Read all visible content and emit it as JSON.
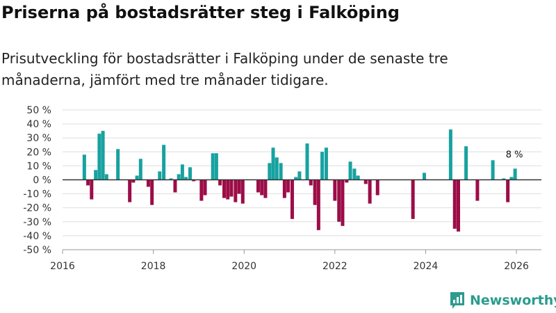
{
  "title": "Priserna på bostadsrätter steg i Falköping",
  "subtitle": "Prisutveckling för bostadsrätter i Falköping under de senaste tre månaderna, jämfört med tre månader tidigare.",
  "brand": {
    "name": "Newsworthy",
    "icon": "newsworthy-logo-icon"
  },
  "colors": {
    "positive": "#17a2a0",
    "negative": "#9c0d47",
    "grid": "#dddddd",
    "zero_line": "#333333",
    "brand": "#2b9b8e"
  },
  "chart_data": {
    "type": "bar",
    "x_unit": "year",
    "xlim": [
      2016,
      2026.55
    ],
    "ylim": [
      -50,
      50
    ],
    "xticks": [
      {
        "value": 2016,
        "label": "2016"
      },
      {
        "value": 2018,
        "label": "2018"
      },
      {
        "value": 2020,
        "label": "2020"
      },
      {
        "value": 2022,
        "label": "2022"
      },
      {
        "value": 2024,
        "label": "2024"
      },
      {
        "value": 2026,
        "label": "2026"
      }
    ],
    "yticks": [
      {
        "value": 50,
        "label": "50 %"
      },
      {
        "value": 40,
        "label": "40 %"
      },
      {
        "value": 30,
        "label": "30 %"
      },
      {
        "value": 20,
        "label": "20 %"
      },
      {
        "value": 10,
        "label": "10 %"
      },
      {
        "value": 0,
        "label": "0 %"
      },
      {
        "value": -10,
        "label": "-10 %"
      },
      {
        "value": -20,
        "label": "-20 %"
      },
      {
        "value": -30,
        "label": "-30 %"
      },
      {
        "value": -40,
        "label": "-40 %"
      },
      {
        "value": -50,
        "label": "-50 %"
      }
    ],
    "bars": [
      {
        "x": 2016.48,
        "value": 18
      },
      {
        "x": 2016.56,
        "value": -4
      },
      {
        "x": 2016.64,
        "value": -14
      },
      {
        "x": 2016.73,
        "value": 7
      },
      {
        "x": 2016.81,
        "value": 33
      },
      {
        "x": 2016.89,
        "value": 35
      },
      {
        "x": 2016.97,
        "value": 4
      },
      {
        "x": 2017.22,
        "value": 22
      },
      {
        "x": 2017.48,
        "value": -16
      },
      {
        "x": 2017.56,
        "value": -2
      },
      {
        "x": 2017.64,
        "value": 3
      },
      {
        "x": 2017.72,
        "value": 15
      },
      {
        "x": 2017.89,
        "value": -5
      },
      {
        "x": 2017.97,
        "value": -18
      },
      {
        "x": 2018.14,
        "value": 6
      },
      {
        "x": 2018.23,
        "value": 25
      },
      {
        "x": 2018.39,
        "value": 1
      },
      {
        "x": 2018.48,
        "value": -9
      },
      {
        "x": 2018.56,
        "value": 4
      },
      {
        "x": 2018.64,
        "value": 11
      },
      {
        "x": 2018.72,
        "value": 2
      },
      {
        "x": 2018.81,
        "value": 9
      },
      {
        "x": 2018.89,
        "value": -1
      },
      {
        "x": 2019.06,
        "value": -15
      },
      {
        "x": 2019.14,
        "value": -11
      },
      {
        "x": 2019.31,
        "value": 19
      },
      {
        "x": 2019.39,
        "value": 19
      },
      {
        "x": 2019.47,
        "value": -4
      },
      {
        "x": 2019.56,
        "value": -13
      },
      {
        "x": 2019.64,
        "value": -14
      },
      {
        "x": 2019.72,
        "value": -12
      },
      {
        "x": 2019.81,
        "value": -16
      },
      {
        "x": 2019.89,
        "value": -10
      },
      {
        "x": 2019.97,
        "value": -17
      },
      {
        "x": 2020.31,
        "value": -9
      },
      {
        "x": 2020.39,
        "value": -11
      },
      {
        "x": 2020.47,
        "value": -13
      },
      {
        "x": 2020.56,
        "value": 12
      },
      {
        "x": 2020.64,
        "value": 23
      },
      {
        "x": 2020.72,
        "value": 16
      },
      {
        "x": 2020.81,
        "value": 12
      },
      {
        "x": 2020.89,
        "value": -13
      },
      {
        "x": 2020.97,
        "value": -9
      },
      {
        "x": 2021.06,
        "value": -28
      },
      {
        "x": 2021.14,
        "value": 2
      },
      {
        "x": 2021.22,
        "value": 6
      },
      {
        "x": 2021.39,
        "value": 26
      },
      {
        "x": 2021.47,
        "value": -4
      },
      {
        "x": 2021.56,
        "value": -18
      },
      {
        "x": 2021.64,
        "value": -36
      },
      {
        "x": 2021.72,
        "value": 20
      },
      {
        "x": 2021.81,
        "value": 23
      },
      {
        "x": 2022.0,
        "value": -15
      },
      {
        "x": 2022.09,
        "value": -30
      },
      {
        "x": 2022.17,
        "value": -33
      },
      {
        "x": 2022.26,
        "value": -2
      },
      {
        "x": 2022.34,
        "value": 13
      },
      {
        "x": 2022.43,
        "value": 8
      },
      {
        "x": 2022.51,
        "value": 3
      },
      {
        "x": 2022.68,
        "value": -3
      },
      {
        "x": 2022.77,
        "value": -17
      },
      {
        "x": 2022.94,
        "value": -11
      },
      {
        "x": 2023.72,
        "value": -28
      },
      {
        "x": 2023.97,
        "value": 5
      },
      {
        "x": 2024.55,
        "value": 36
      },
      {
        "x": 2024.64,
        "value": -35
      },
      {
        "x": 2024.72,
        "value": -37
      },
      {
        "x": 2024.89,
        "value": 24
      },
      {
        "x": 2025.14,
        "value": -15
      },
      {
        "x": 2025.48,
        "value": 14
      },
      {
        "x": 2025.72,
        "value": 1
      },
      {
        "x": 2025.81,
        "value": -16
      },
      {
        "x": 2025.89,
        "value": 2
      },
      {
        "x": 2025.97,
        "value": 8
      }
    ],
    "annotation": {
      "x": 2025.97,
      "value": 8,
      "label": "8 %"
    }
  }
}
